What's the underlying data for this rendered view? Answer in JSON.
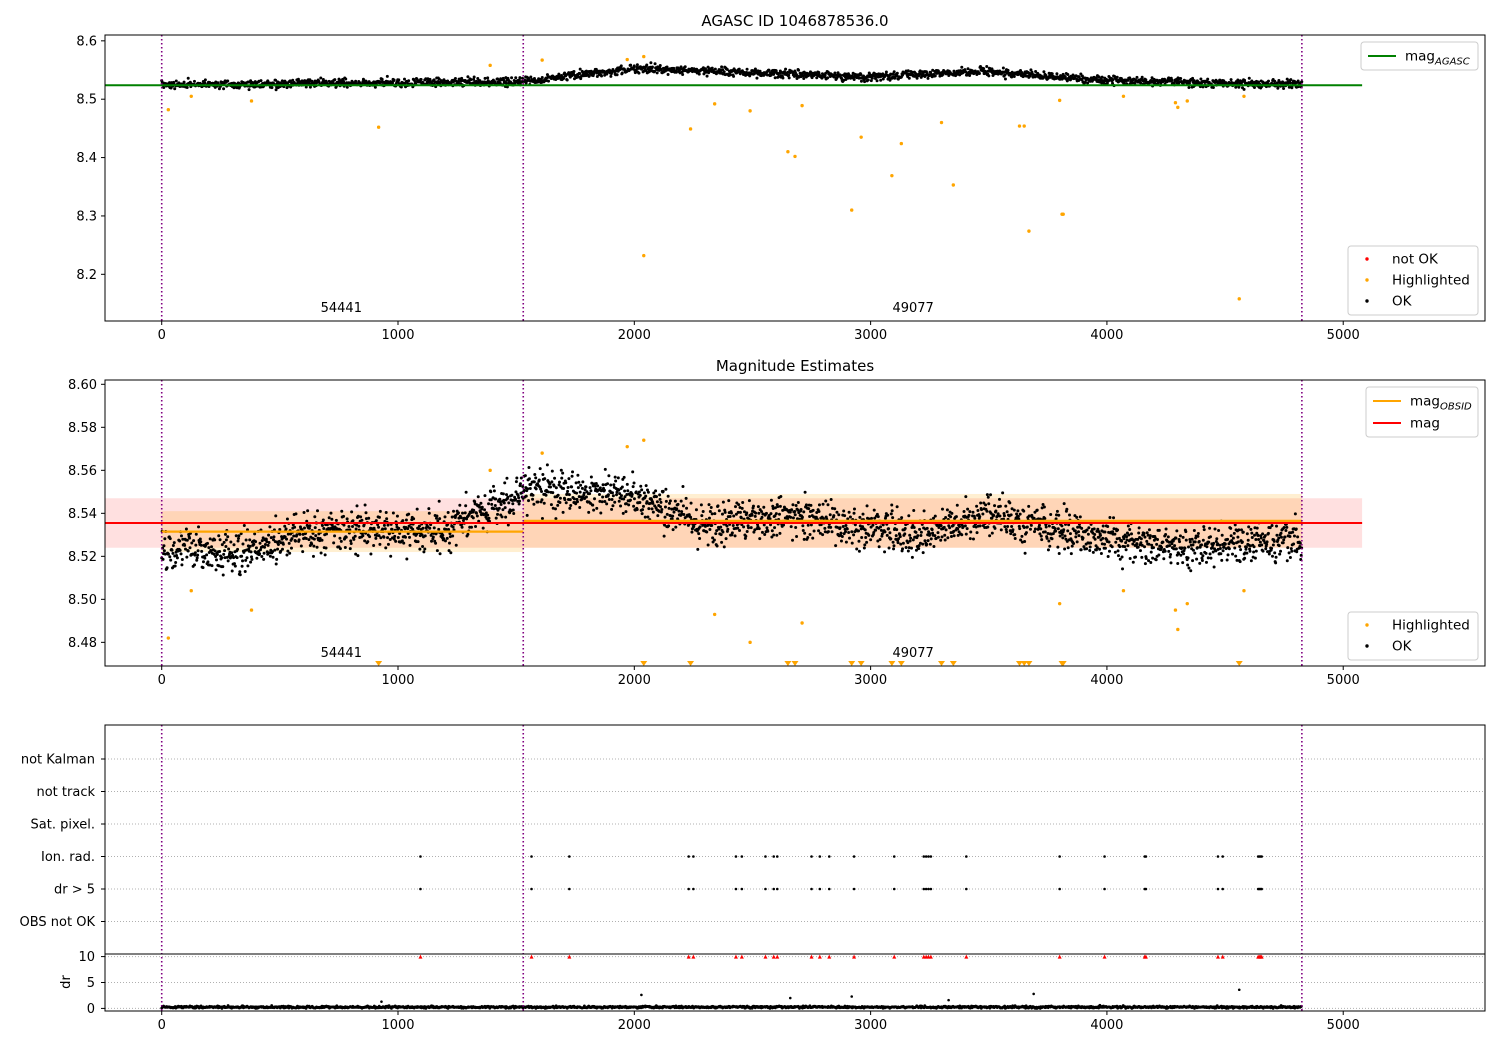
{
  "chart_data": [
    {
      "type": "scatter",
      "title": "AGASC ID 1046878536.0",
      "xlim": [
        -240,
        5600
      ],
      "ylim": [
        8.12,
        8.61
      ],
      "xticks": [
        0,
        1000,
        2000,
        3000,
        4000,
        5000
      ],
      "yticks": [
        8.2,
        8.3,
        8.4,
        8.5,
        8.6
      ],
      "vlines": [
        0,
        1530,
        4825
      ],
      "obsid_labels": [
        {
          "x": 760,
          "text": "54441"
        },
        {
          "x": 3180,
          "text": "49077"
        }
      ],
      "hline": {
        "name": "mag_AGASC",
        "label": "mag",
        "subscript": "AGASC",
        "y": 8.524,
        "x_end": 5080,
        "color": "#008000"
      },
      "ok_band": {
        "x_range": [
          0,
          4825
        ],
        "center": [
          [
            0,
            8.525
          ],
          [
            1530,
            8.53
          ],
          [
            2000,
            8.553
          ],
          [
            3000,
            8.538
          ],
          [
            3450,
            8.548
          ],
          [
            4000,
            8.532
          ],
          [
            4825,
            8.525
          ]
        ],
        "spread": 0.007
      },
      "highlighted": [
        [
          28,
          8.482
        ],
        [
          125,
          8.505
        ],
        [
          380,
          8.497
        ],
        [
          918,
          8.452
        ],
        [
          1390,
          8.558
        ],
        [
          1610,
          8.567
        ],
        [
          1970,
          8.568
        ],
        [
          2040,
          8.573
        ],
        [
          2040,
          8.232
        ],
        [
          2238,
          8.449
        ],
        [
          2340,
          8.492
        ],
        [
          2490,
          8.48
        ],
        [
          2650,
          8.41
        ],
        [
          2680,
          8.402
        ],
        [
          2710,
          8.489
        ],
        [
          2920,
          8.31
        ],
        [
          2960,
          8.435
        ],
        [
          3090,
          8.369
        ],
        [
          3130,
          8.424
        ],
        [
          3300,
          8.46
        ],
        [
          3350,
          8.353
        ],
        [
          3630,
          8.454
        ],
        [
          3650,
          8.454
        ],
        [
          3670,
          8.274
        ],
        [
          3800,
          8.498
        ],
        [
          3810,
          8.303
        ],
        [
          3815,
          8.303
        ],
        [
          4070,
          8.505
        ],
        [
          4290,
          8.494
        ],
        [
          4300,
          8.486
        ],
        [
          4340,
          8.497
        ],
        [
          4560,
          8.158
        ],
        [
          4580,
          8.505
        ]
      ],
      "legend_lines": [
        {
          "label": "mag",
          "subscript": "AGASC",
          "color": "#008000"
        }
      ],
      "legend_markers": [
        {
          "label": "not OK",
          "color": "#ff0000"
        },
        {
          "label": "Highlighted",
          "color": "#ffa500"
        },
        {
          "label": "OK",
          "color": "#000000"
        }
      ]
    },
    {
      "type": "scatter",
      "title": "Magnitude Estimates",
      "xlim": [
        -240,
        5600
      ],
      "ylim": [
        8.469,
        8.602
      ],
      "xticks": [
        0,
        1000,
        2000,
        3000,
        4000,
        5000
      ],
      "yticks": [
        8.48,
        8.5,
        8.52,
        8.54,
        8.56,
        8.58,
        8.6
      ],
      "vlines": [
        0,
        1530,
        4825
      ],
      "obsid_labels": [
        {
          "x": 760,
          "text": "54441"
        },
        {
          "x": 3180,
          "text": "49077"
        }
      ],
      "mag": {
        "label": "mag",
        "y": 8.5355,
        "band": [
          8.524,
          8.547
        ],
        "x_end": 5080,
        "color": "#ff0000"
      },
      "mag_obsid": [
        {
          "label": "mag",
          "subscript": "OBSID",
          "x_range": [
            0,
            1530
          ],
          "y": 8.5315,
          "band": [
            8.522,
            8.541
          ]
        },
        {
          "label": "mag",
          "subscript": "OBSID",
          "x_range": [
            1530,
            4825
          ],
          "y": 8.5365,
          "band": [
            8.524,
            8.549
          ]
        }
      ],
      "ok_band": {
        "x_range": [
          0,
          4825
        ],
        "center": [
          [
            0,
            8.523
          ],
          [
            300,
            8.522
          ],
          [
            700,
            8.533
          ],
          [
            1200,
            8.532
          ],
          [
            1500,
            8.548
          ],
          [
            1560,
            8.552
          ],
          [
            2000,
            8.548
          ],
          [
            2300,
            8.535
          ],
          [
            2700,
            8.538
          ],
          [
            3200,
            8.53
          ],
          [
            3500,
            8.54
          ],
          [
            4000,
            8.528
          ],
          [
            4300,
            8.524
          ],
          [
            4825,
            8.528
          ]
        ],
        "spread": 0.009
      },
      "highlighted": [
        [
          28,
          8.482
        ],
        [
          125,
          8.504
        ],
        [
          380,
          8.495
        ],
        [
          1390,
          8.56
        ],
        [
          1610,
          8.568
        ],
        [
          1970,
          8.571
        ],
        [
          2040,
          8.574
        ],
        [
          2340,
          8.493
        ],
        [
          2490,
          8.48
        ],
        [
          2710,
          8.489
        ],
        [
          3800,
          8.498
        ],
        [
          4070,
          8.504
        ],
        [
          4290,
          8.495
        ],
        [
          4300,
          8.486
        ],
        [
          4340,
          8.498
        ],
        [
          4580,
          8.504
        ]
      ],
      "offscale_low": [
        918,
        2040,
        2238,
        2650,
        2680,
        2920,
        2960,
        3090,
        3130,
        3300,
        3350,
        3630,
        3650,
        3670,
        3810,
        3815,
        4560
      ],
      "legend_lines": [
        {
          "label": "mag",
          "subscript": "OBSID",
          "color": "#ffa500"
        },
        {
          "label": "mag",
          "subscript": "",
          "color": "#ff0000"
        }
      ],
      "legend_markers": [
        {
          "label": "Highlighted",
          "color": "#ffa500"
        },
        {
          "label": "OK",
          "color": "#000000"
        }
      ]
    },
    {
      "type": "scatter",
      "xlim": [
        -240,
        5600
      ],
      "xticks": [
        0,
        1000,
        2000,
        3000,
        4000,
        5000
      ],
      "vlines": [
        0,
        1530,
        4825
      ],
      "flag_rows": [
        "not Kalman",
        "not track",
        "Sat. pixel.",
        "Ion. rad.",
        "dr > 5",
        "OBS not OK"
      ],
      "flag_events": [
        1095,
        1565,
        1725,
        2230,
        2250,
        2430,
        2455,
        2555,
        2590,
        2605,
        2750,
        2785,
        2825,
        2930,
        3100,
        3225,
        3235,
        3245,
        3255,
        3405,
        3800,
        3990,
        4160,
        4165,
        4470,
        4490,
        4640,
        4645,
        4650,
        4655
      ],
      "flagged_rows": [
        "Ion. rad.",
        "dr > 5"
      ],
      "dr_panel": {
        "ylabel": "dr",
        "ylim": [
          -0.5,
          10.5
        ],
        "yticks": [
          0,
          5,
          10
        ],
        "clip_value": 10,
        "baseline": 0.25,
        "noise": 0.35,
        "outliers": [
          [
            930,
            1.3
          ],
          [
            2030,
            2.6
          ],
          [
            2660,
            2.0
          ],
          [
            2920,
            2.3
          ],
          [
            3330,
            1.6
          ],
          [
            3690,
            2.8
          ],
          [
            4560,
            3.6
          ]
        ]
      }
    }
  ]
}
